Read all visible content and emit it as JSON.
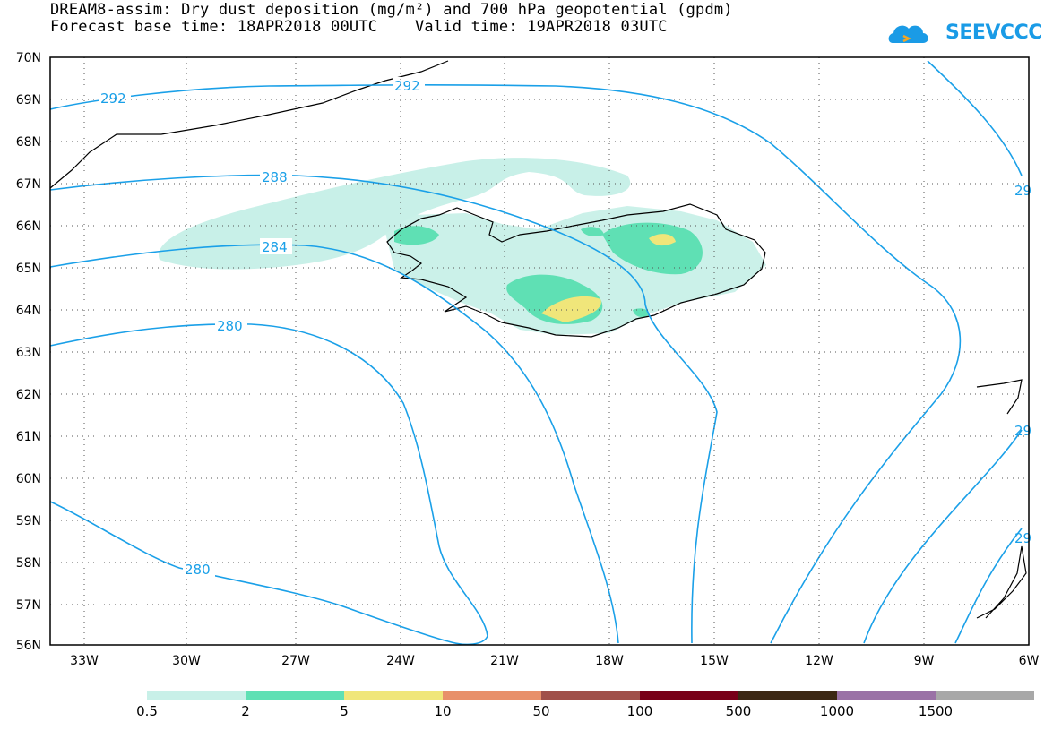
{
  "title": {
    "line1": "DREAM8-assim: Dry dust deposition (mg/m²) and 700 hPa geopotential (gpdm)",
    "line2": "Forecast base time: 18APR2018 00UTC    Valid time: 19APR2018 03UTC"
  },
  "logo": {
    "text": "SEEVCCC",
    "color": "#1a9be6"
  },
  "axes": {
    "lat_labels": [
      "70N",
      "69N",
      "68N",
      "67N",
      "66N",
      "65N",
      "64N",
      "63N",
      "62N",
      "61N",
      "60N",
      "59N",
      "58N",
      "57N",
      "56N"
    ],
    "lon_labels": [
      "33W",
      "30W",
      "27W",
      "24W",
      "21W",
      "18W",
      "15W",
      "12W",
      "9W",
      "6W"
    ]
  },
  "contours": {
    "color": "#1aa0e8",
    "labels": [
      "292",
      "292",
      "288",
      "284",
      "280",
      "280",
      "29",
      "29",
      "29"
    ]
  },
  "legend": {
    "colors": [
      "#c8f0e8",
      "#5fe0b4",
      "#f0e67a",
      "#e8906a",
      "#a0504a",
      "#780018",
      "#3c2814",
      "#9a72a6",
      "#a8a8a8"
    ],
    "labels": [
      "0.5",
      "2",
      "5",
      "10",
      "50",
      "100",
      "500",
      "1000",
      "1500"
    ]
  }
}
